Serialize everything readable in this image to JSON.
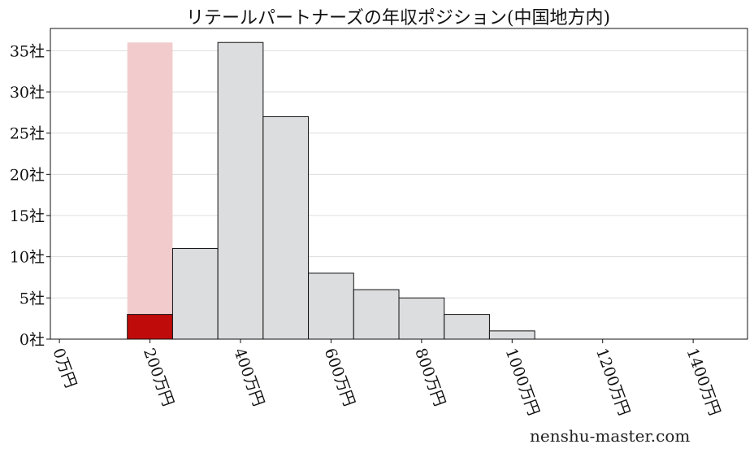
{
  "chart_data": {
    "type": "bar",
    "title": "リテールパートナーズの年収ポジション(中国地方内)",
    "xlabel": "",
    "ylabel": "",
    "bins": [
      [
        150,
        250
      ],
      [
        250,
        350
      ],
      [
        350,
        450
      ],
      [
        450,
        550
      ],
      [
        550,
        650
      ],
      [
        650,
        750
      ],
      [
        750,
        850
      ],
      [
        850,
        950
      ],
      [
        950,
        1050
      ]
    ],
    "values": [
      3,
      11,
      36,
      27,
      8,
      6,
      5,
      3,
      1
    ],
    "highlight_bin_index": 0,
    "highlight_band": {
      "x": [
        150,
        250
      ],
      "y": 36
    },
    "xlim": [
      -20,
      1520
    ],
    "ylim": [
      0,
      37.7
    ],
    "xticks": [
      0,
      200,
      400,
      600,
      800,
      1000,
      1200,
      1400
    ],
    "xtick_labels": [
      "0万円",
      "200万円",
      "400万円",
      "600万円",
      "800万円",
      "1000万円",
      "1200万円",
      "1400万円"
    ],
    "yticks": [
      0,
      5,
      10,
      15,
      20,
      25,
      30,
      35
    ],
    "ytick_labels": [
      "0社",
      "5社",
      "10社",
      "15社",
      "20社",
      "25社",
      "30社",
      "35社"
    ],
    "grid": "horizontal",
    "colors": {
      "bar": "#dcdddf",
      "highlight_bar": "#c00b0b",
      "band": "#f2cccd",
      "grid": "#dddddd"
    }
  },
  "watermark": "nenshu-master.com"
}
